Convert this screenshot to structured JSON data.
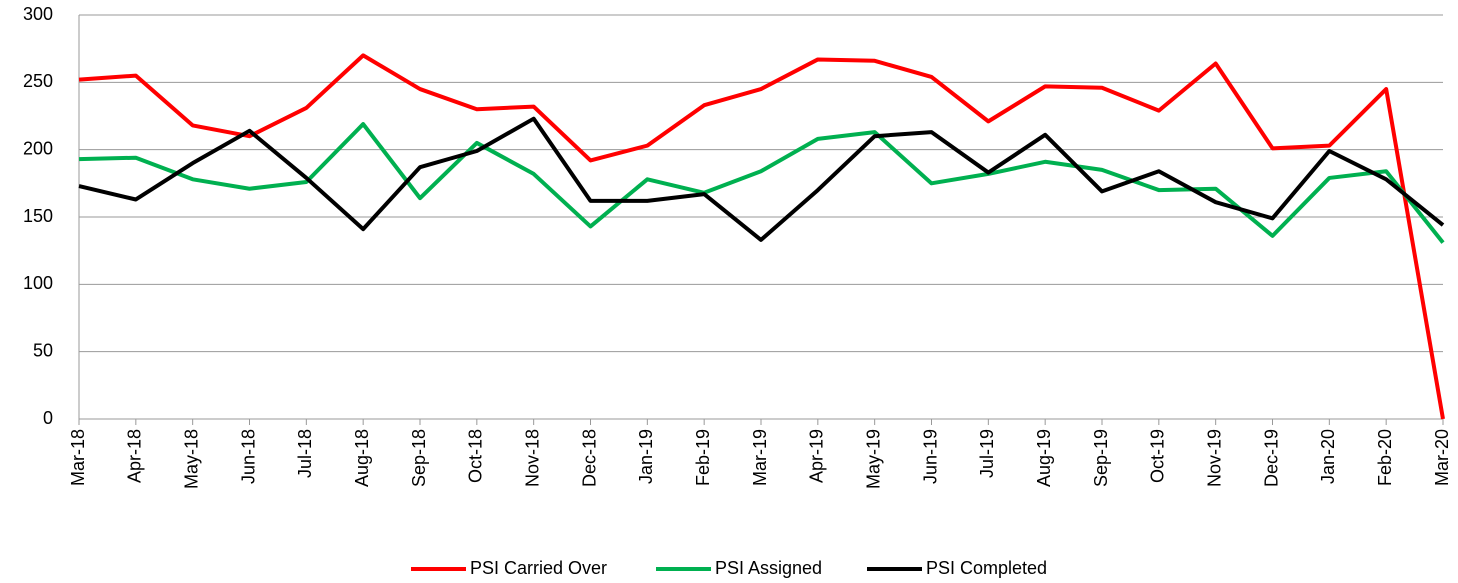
{
  "chart_data": {
    "type": "line",
    "categories": [
      "Mar-18",
      "Apr-18",
      "May-18",
      "Jun-18",
      "Jul-18",
      "Aug-18",
      "Sep-18",
      "Oct-18",
      "Nov-18",
      "Dec-18",
      "Jan-19",
      "Feb-19",
      "Mar-19",
      "Apr-19",
      "May-19",
      "Jun-19",
      "Jul-19",
      "Aug-19",
      "Sep-19",
      "Oct-19",
      "Nov-19",
      "Dec-19",
      "Jan-20",
      "Feb-20",
      "Mar-20"
    ],
    "series": [
      {
        "name": "PSI Carried Over",
        "color": "#ff0000",
        "values": [
          252,
          255,
          218,
          210,
          231,
          270,
          245,
          230,
          232,
          192,
          203,
          233,
          245,
          267,
          266,
          254,
          221,
          247,
          246,
          229,
          264,
          201,
          203,
          245,
          0
        ]
      },
      {
        "name": "PSI Assigned",
        "color": "#00b050",
        "values": [
          193,
          194,
          178,
          171,
          176,
          219,
          164,
          205,
          182,
          143,
          178,
          168,
          184,
          208,
          213,
          175,
          182,
          191,
          185,
          170,
          171,
          136,
          179,
          184,
          131
        ]
      },
      {
        "name": "PSI Completed",
        "color": "#000000",
        "values": [
          173,
          163,
          190,
          214,
          179,
          141,
          187,
          199,
          223,
          162,
          162,
          167,
          133,
          170,
          210,
          213,
          183,
          211,
          169,
          184,
          161,
          149,
          199,
          178,
          144
        ]
      }
    ],
    "ylim": [
      0,
      300
    ],
    "yticks": [
      0,
      50,
      100,
      150,
      200,
      250,
      300
    ],
    "grid": true,
    "legend": "bottom"
  }
}
